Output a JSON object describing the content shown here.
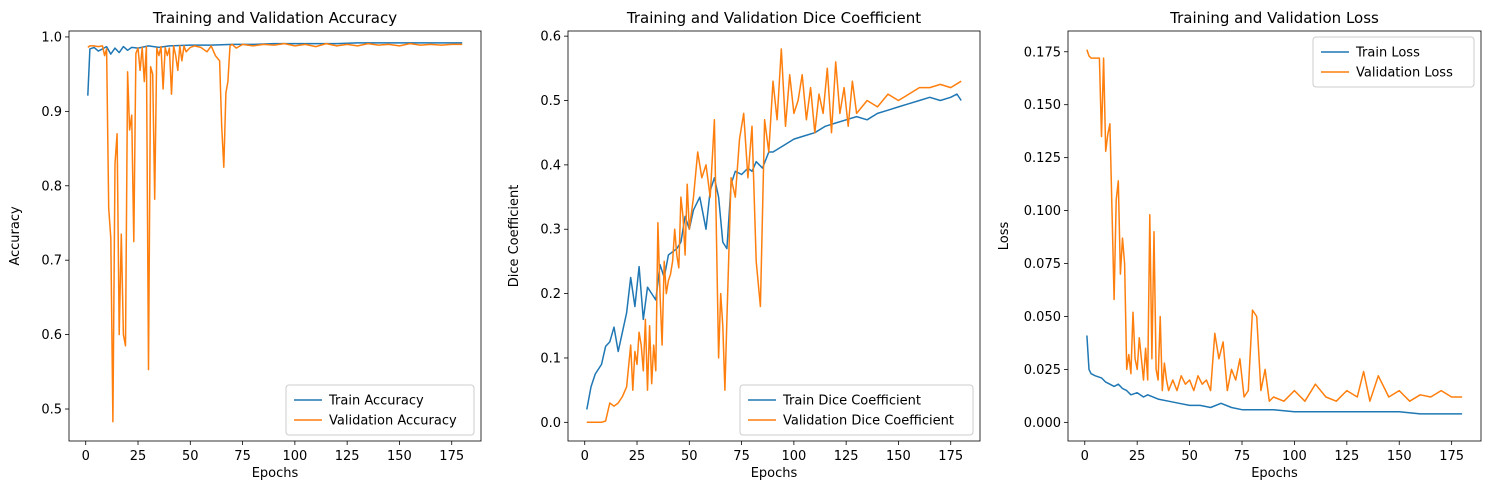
{
  "colors": {
    "train": "#1f77b4",
    "validation": "#ff7f0e"
  },
  "chart_data": [
    {
      "type": "line",
      "title": "Training and Validation Accuracy",
      "xlabel": "Epochs",
      "ylabel": "Accuracy",
      "xlim": [
        -8,
        189
      ],
      "ylim": [
        0.457,
        1.008
      ],
      "xticks": [
        0,
        25,
        50,
        75,
        100,
        125,
        150,
        175
      ],
      "yticks": [
        0.5,
        0.6,
        0.7,
        0.8,
        0.9,
        1.0
      ],
      "ytick_decimals": 1,
      "legend": "lower-right",
      "series": [
        {
          "name": "Train Accuracy",
          "color": "#1f77b4",
          "x": [
            1,
            2,
            4,
            6,
            8,
            10,
            12,
            14,
            16,
            18,
            20,
            22,
            25,
            30,
            35,
            40,
            50,
            60,
            70,
            80,
            90,
            100,
            110,
            120,
            130,
            140,
            150,
            160,
            170,
            180
          ],
          "y": [
            0.921,
            0.984,
            0.986,
            0.981,
            0.984,
            0.987,
            0.977,
            0.985,
            0.979,
            0.987,
            0.982,
            0.986,
            0.985,
            0.988,
            0.986,
            0.988,
            0.989,
            0.989,
            0.99,
            0.99,
            0.991,
            0.991,
            0.991,
            0.991,
            0.992,
            0.992,
            0.992,
            0.992,
            0.992,
            0.992
          ]
        },
        {
          "name": "Validation Accuracy",
          "color": "#ff7f0e",
          "x": [
            1,
            2,
            4,
            6,
            8,
            9,
            10,
            11,
            12,
            13,
            14,
            15,
            16,
            17,
            18,
            19,
            20,
            21,
            22,
            23,
            24,
            25,
            26,
            27,
            28,
            29,
            30,
            31,
            32,
            33,
            34,
            35,
            36,
            37,
            38,
            39,
            40,
            41,
            42,
            43,
            44,
            45,
            46,
            47,
            48,
            50,
            52,
            55,
            58,
            60,
            62,
            64,
            65,
            66,
            67,
            68,
            69,
            70,
            72,
            75,
            80,
            85,
            90,
            95,
            100,
            105,
            110,
            115,
            120,
            125,
            130,
            135,
            140,
            145,
            150,
            155,
            160,
            165,
            170,
            175,
            180
          ],
          "y": [
            0.986,
            0.988,
            0.988,
            0.987,
            0.988,
            0.975,
            0.984,
            0.77,
            0.73,
            0.483,
            0.83,
            0.87,
            0.6,
            0.735,
            0.6,
            0.585,
            0.953,
            0.875,
            0.895,
            0.725,
            0.978,
            0.985,
            0.955,
            0.986,
            0.94,
            0.987,
            0.553,
            0.96,
            0.95,
            0.782,
            0.985,
            0.975,
            0.987,
            0.93,
            0.986,
            0.975,
            0.985,
            0.923,
            0.988,
            0.975,
            0.955,
            0.988,
            0.968,
            0.988,
            0.98,
            0.986,
            0.988,
            0.986,
            0.98,
            0.988,
            0.975,
            0.968,
            0.88,
            0.825,
            0.925,
            0.94,
            0.988,
            0.99,
            0.985,
            0.99,
            0.988,
            0.99,
            0.989,
            0.991,
            0.988,
            0.99,
            0.987,
            0.991,
            0.988,
            0.99,
            0.988,
            0.991,
            0.989,
            0.99,
            0.988,
            0.991,
            0.989,
            0.99,
            0.989,
            0.99,
            0.99
          ]
        }
      ]
    },
    {
      "type": "line",
      "title": "Training and Validation Dice Coefficient",
      "xlabel": "Epochs",
      "ylabel": "Dice Coefficient",
      "xlim": [
        -8,
        189
      ],
      "ylim": [
        -0.029,
        0.608
      ],
      "xticks": [
        0,
        25,
        50,
        75,
        100,
        125,
        150,
        175
      ],
      "yticks": [
        0.0,
        0.1,
        0.2,
        0.3,
        0.4,
        0.5,
        0.6
      ],
      "ytick_decimals": 1,
      "legend": "lower-right",
      "series": [
        {
          "name": "Train Dice Coefficient",
          "color": "#1f77b4",
          "x": [
            1,
            3,
            5,
            8,
            10,
            12,
            14,
            16,
            18,
            20,
            22,
            24,
            26,
            28,
            30,
            32,
            34,
            36,
            38,
            40,
            42,
            44,
            46,
            48,
            50,
            52,
            55,
            58,
            60,
            62,
            64,
            66,
            68,
            70,
            72,
            75,
            78,
            80,
            82,
            85,
            88,
            90,
            95,
            100,
            105,
            110,
            115,
            120,
            125,
            130,
            135,
            140,
            145,
            150,
            155,
            160,
            165,
            170,
            175,
            178,
            180
          ],
          "y": [
            0.02,
            0.055,
            0.075,
            0.09,
            0.118,
            0.125,
            0.148,
            0.11,
            0.14,
            0.17,
            0.225,
            0.18,
            0.242,
            0.16,
            0.21,
            0.2,
            0.19,
            0.245,
            0.225,
            0.26,
            0.265,
            0.27,
            0.28,
            0.32,
            0.3,
            0.33,
            0.35,
            0.3,
            0.36,
            0.38,
            0.35,
            0.28,
            0.27,
            0.37,
            0.39,
            0.385,
            0.395,
            0.39,
            0.405,
            0.395,
            0.42,
            0.42,
            0.43,
            0.44,
            0.445,
            0.45,
            0.46,
            0.465,
            0.47,
            0.475,
            0.47,
            0.48,
            0.485,
            0.49,
            0.495,
            0.5,
            0.505,
            0.5,
            0.505,
            0.51,
            0.5
          ]
        },
        {
          "name": "Validation Dice Coefficient",
          "color": "#ff7f0e",
          "x": [
            1,
            3,
            5,
            8,
            10,
            12,
            14,
            16,
            18,
            20,
            22,
            23,
            24,
            25,
            26,
            27,
            28,
            29,
            30,
            31,
            32,
            33,
            34,
            35,
            36,
            37,
            38,
            39,
            40,
            41,
            42,
            43,
            44,
            45,
            46,
            47,
            48,
            49,
            50,
            52,
            54,
            56,
            58,
            60,
            62,
            64,
            65,
            66,
            67,
            68,
            70,
            72,
            74,
            76,
            78,
            80,
            82,
            84,
            86,
            88,
            90,
            92,
            94,
            96,
            98,
            100,
            102,
            104,
            106,
            108,
            110,
            112,
            114,
            116,
            118,
            120,
            122,
            124,
            126,
            128,
            130,
            135,
            140,
            145,
            150,
            155,
            160,
            165,
            170,
            175,
            180
          ],
          "y": [
            0.0,
            0.0,
            0.0,
            0.0,
            0.002,
            0.03,
            0.025,
            0.03,
            0.04,
            0.055,
            0.12,
            0.05,
            0.11,
            0.09,
            0.14,
            0.12,
            0.08,
            0.16,
            0.05,
            0.15,
            0.06,
            0.12,
            0.08,
            0.31,
            0.2,
            0.12,
            0.25,
            0.2,
            0.22,
            0.23,
            0.25,
            0.3,
            0.26,
            0.24,
            0.35,
            0.32,
            0.26,
            0.37,
            0.3,
            0.35,
            0.42,
            0.38,
            0.4,
            0.35,
            0.47,
            0.1,
            0.2,
            0.15,
            0.05,
            0.16,
            0.38,
            0.35,
            0.44,
            0.48,
            0.38,
            0.46,
            0.25,
            0.18,
            0.47,
            0.42,
            0.53,
            0.47,
            0.58,
            0.46,
            0.54,
            0.48,
            0.5,
            0.54,
            0.47,
            0.52,
            0.45,
            0.51,
            0.48,
            0.55,
            0.45,
            0.56,
            0.48,
            0.52,
            0.46,
            0.53,
            0.48,
            0.5,
            0.49,
            0.51,
            0.5,
            0.51,
            0.52,
            0.52,
            0.525,
            0.52,
            0.53
          ]
        }
      ]
    },
    {
      "type": "line",
      "title": "Training and Validation Loss",
      "xlabel": "Epochs",
      "ylabel": "Loss",
      "xlim": [
        -8,
        189
      ],
      "ylim": [
        -0.0088,
        0.1848
      ],
      "xticks": [
        0,
        25,
        50,
        75,
        100,
        125,
        150,
        175
      ],
      "yticks": [
        0.0,
        0.025,
        0.05,
        0.075,
        0.1,
        0.125,
        0.15,
        0.175
      ],
      "ytick_decimals": 3,
      "legend": "top-right",
      "series": [
        {
          "name": "Train Loss",
          "color": "#1f77b4",
          "x": [
            1,
            2,
            3,
            5,
            8,
            10,
            12,
            14,
            16,
            18,
            20,
            22,
            25,
            28,
            30,
            35,
            40,
            45,
            50,
            55,
            60,
            65,
            70,
            75,
            80,
            90,
            100,
            110,
            120,
            130,
            140,
            150,
            160,
            170,
            180
          ],
          "y": [
            0.041,
            0.025,
            0.023,
            0.022,
            0.021,
            0.019,
            0.018,
            0.017,
            0.018,
            0.016,
            0.015,
            0.013,
            0.014,
            0.012,
            0.013,
            0.011,
            0.01,
            0.009,
            0.008,
            0.008,
            0.007,
            0.009,
            0.007,
            0.006,
            0.006,
            0.006,
            0.005,
            0.005,
            0.005,
            0.005,
            0.005,
            0.005,
            0.004,
            0.004,
            0.004
          ]
        },
        {
          "name": "Validation Loss",
          "color": "#ff7f0e",
          "x": [
            1,
            2,
            3,
            5,
            7,
            8,
            9,
            10,
            11,
            12,
            13,
            14,
            15,
            16,
            17,
            18,
            19,
            20,
            21,
            22,
            23,
            24,
            25,
            26,
            27,
            28,
            29,
            30,
            31,
            32,
            33,
            34,
            35,
            36,
            37,
            38,
            39,
            40,
            42,
            44,
            46,
            48,
            50,
            52,
            54,
            56,
            58,
            60,
            62,
            64,
            66,
            68,
            70,
            72,
            74,
            76,
            78,
            80,
            82,
            84,
            86,
            88,
            90,
            95,
            100,
            105,
            110,
            115,
            120,
            125,
            130,
            133,
            136,
            140,
            145,
            150,
            155,
            160,
            165,
            170,
            175,
            180
          ],
          "y": [
            0.176,
            0.173,
            0.172,
            0.172,
            0.172,
            0.135,
            0.172,
            0.128,
            0.136,
            0.141,
            0.1,
            0.058,
            0.105,
            0.114,
            0.07,
            0.087,
            0.075,
            0.025,
            0.032,
            0.023,
            0.052,
            0.03,
            0.025,
            0.04,
            0.03,
            0.02,
            0.035,
            0.02,
            0.098,
            0.03,
            0.09,
            0.025,
            0.02,
            0.05,
            0.015,
            0.028,
            0.02,
            0.015,
            0.02,
            0.015,
            0.022,
            0.018,
            0.02,
            0.015,
            0.022,
            0.018,
            0.02,
            0.015,
            0.042,
            0.03,
            0.038,
            0.015,
            0.025,
            0.02,
            0.03,
            0.012,
            0.015,
            0.053,
            0.05,
            0.015,
            0.025,
            0.01,
            0.012,
            0.01,
            0.015,
            0.01,
            0.018,
            0.012,
            0.01,
            0.015,
            0.012,
            0.024,
            0.01,
            0.022,
            0.012,
            0.015,
            0.01,
            0.013,
            0.012,
            0.015,
            0.012,
            0.012
          ]
        }
      ]
    }
  ]
}
